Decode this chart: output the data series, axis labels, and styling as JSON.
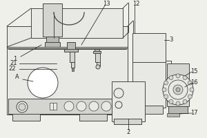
{
  "bg_color": "#f0f0eb",
  "line_color": "#444444",
  "fill_light": "#e8e8e4",
  "fill_mid": "#d4d4d0",
  "fill_dark": "#b8b8b4",
  "figsize": [
    3.0,
    2.0
  ],
  "dpi": 100,
  "label_fs": 6.0,
  "label_color": "#222222"
}
